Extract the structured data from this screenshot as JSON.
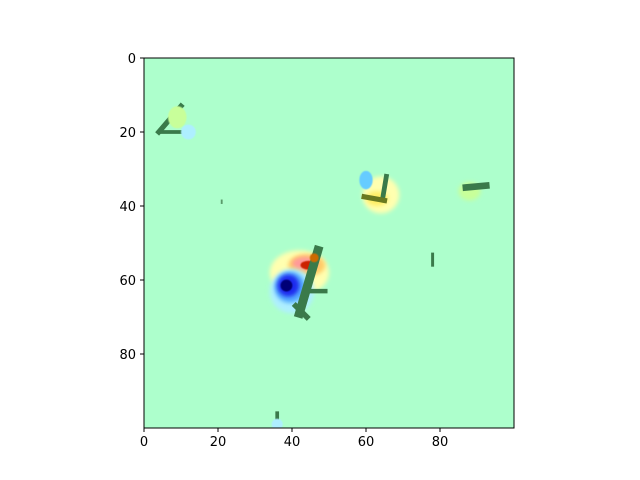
{
  "chart_data": {
    "type": "heatmap",
    "title": "",
    "xlabel": "",
    "ylabel": "",
    "xlim": [
      0,
      100
    ],
    "ylim": [
      100,
      0
    ],
    "xticks": [
      0,
      20,
      40,
      60,
      80
    ],
    "yticks": [
      0,
      20,
      40,
      60,
      80
    ],
    "xtick_labels": [
      "0",
      "20",
      "40",
      "60",
      "80"
    ],
    "ytick_labels": [
      "0",
      "20",
      "40",
      "60",
      "80"
    ],
    "grid": false,
    "background_color": "#adffcc",
    "features": [
      {
        "kind": "stroke",
        "color": "#3a7a4a",
        "points": [
          [
            10,
            13
          ],
          [
            4,
            20
          ]
        ],
        "width": 1.4
      },
      {
        "kind": "stroke",
        "color": "#3a7a4a",
        "points": [
          [
            4,
            20
          ],
          [
            10,
            20
          ]
        ],
        "width": 1.0
      },
      {
        "kind": "blob",
        "color": "#c8ff9a",
        "x": 9,
        "y": 16,
        "rx": 2.5,
        "ry": 3
      },
      {
        "kind": "blob",
        "color": "#aeefff",
        "x": 12,
        "y": 20,
        "rx": 2,
        "ry": 2
      },
      {
        "kind": "blob",
        "color": "#ffffb0",
        "x": 64,
        "y": 37,
        "rx": 5,
        "ry": 5
      },
      {
        "kind": "blob",
        "color": "#ffee66",
        "x": 63,
        "y": 38,
        "rx": 3,
        "ry": 2
      },
      {
        "kind": "blob",
        "color": "#66ccff",
        "x": 60,
        "y": 33,
        "rx": 1.8,
        "ry": 2.5
      },
      {
        "kind": "stroke",
        "color": "#3a7a4a",
        "points": [
          [
            65.5,
            32
          ],
          [
            64.5,
            38
          ]
        ],
        "width": 1.3
      },
      {
        "kind": "stroke",
        "color": "#6a7a20",
        "points": [
          [
            59.5,
            37.5
          ],
          [
            65,
            38.5
          ]
        ],
        "width": 1.4
      },
      {
        "kind": "blob",
        "color": "#c8ff9a",
        "x": 88,
        "y": 36,
        "rx": 3,
        "ry": 2.5
      },
      {
        "kind": "stroke",
        "color": "#3a7a4a",
        "points": [
          [
            87,
            35
          ],
          [
            92.5,
            34.5
          ]
        ],
        "width": 1.8
      },
      {
        "kind": "stroke",
        "color": "#3a7a4a",
        "points": [
          [
            78,
            53
          ],
          [
            78,
            56
          ]
        ],
        "width": 0.8
      },
      {
        "kind": "stroke",
        "color": "#5a9a6a",
        "points": [
          [
            21,
            38.5
          ],
          [
            21,
            39.2
          ]
        ],
        "width": 0.5
      },
      {
        "kind": "blob",
        "color": "#ffffb0",
        "x": 42,
        "y": 58,
        "rx": 8,
        "ry": 6
      },
      {
        "kind": "blob",
        "color": "#ffcc66",
        "x": 44,
        "y": 56,
        "rx": 5,
        "ry": 3
      },
      {
        "kind": "blob",
        "color": "#ff9a9a",
        "x": 43.5,
        "y": 55.5,
        "rx": 3.5,
        "ry": 1.8
      },
      {
        "kind": "blob",
        "color": "#cc2200",
        "x": 44.5,
        "y": 56,
        "rx": 2.2,
        "ry": 1.2
      },
      {
        "kind": "blob",
        "color": "#aeefff",
        "x": 40,
        "y": 63,
        "rx": 6,
        "ry": 6
      },
      {
        "kind": "blob",
        "color": "#55aaff",
        "x": 39.5,
        "y": 62,
        "rx": 4.2,
        "ry": 4.2
      },
      {
        "kind": "blob",
        "color": "#1a2aee",
        "x": 39,
        "y": 61.5,
        "rx": 3,
        "ry": 3
      },
      {
        "kind": "blob",
        "color": "#000077",
        "x": 38.5,
        "y": 61.5,
        "rx": 1.6,
        "ry": 1.6
      },
      {
        "kind": "stroke",
        "color": "#3a7a4a",
        "points": [
          [
            47,
            52
          ],
          [
            42,
            69
          ]
        ],
        "width": 2.4
      },
      {
        "kind": "stroke",
        "color": "#3a7a4a",
        "points": [
          [
            44,
            63
          ],
          [
            49,
            63
          ]
        ],
        "width": 1.2
      },
      {
        "kind": "stroke",
        "color": "#3a7a4a",
        "points": [
          [
            41,
            67
          ],
          [
            44,
            70
          ]
        ],
        "width": 1.5
      },
      {
        "kind": "blob",
        "color": "#cc6a00",
        "x": 46,
        "y": 54,
        "rx": 1.2,
        "ry": 1.2
      },
      {
        "kind": "stroke",
        "color": "#3a7a4a",
        "points": [
          [
            36,
            96
          ],
          [
            36,
            100
          ]
        ],
        "width": 1.0
      },
      {
        "kind": "blob",
        "color": "#aeefff",
        "x": 36,
        "y": 99,
        "rx": 1.5,
        "ry": 1.5
      }
    ]
  }
}
